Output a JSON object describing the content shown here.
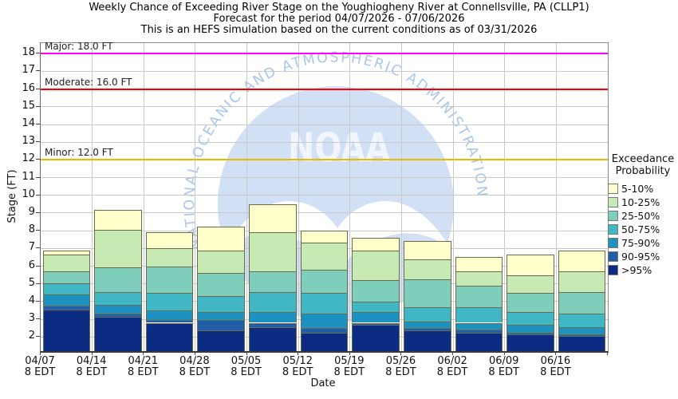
{
  "title": {
    "line1": "Weekly Chance of Exceeding River Stage on the Youghiogheny River at Connellsville, PA (CLLP1)",
    "line2": "Forecast for the period 04/07/2026 - 07/06/2026",
    "line3": "This is an HEFS simulation based on the current conditions as of 03/31/2026"
  },
  "axes": {
    "y_label": "Stage (FT)",
    "x_label": "Date",
    "y_ticks": [
      2,
      3,
      4,
      5,
      6,
      7,
      8,
      9,
      10,
      11,
      12,
      13,
      14,
      15,
      16,
      17,
      18
    ],
    "x_time_label": "8 EDT"
  },
  "thresholds": [
    {
      "name": "Major",
      "label": "Major: 18.0 FT",
      "value": 18.0,
      "color": "#ff00ff"
    },
    {
      "name": "Moderate",
      "label": "Moderate: 16.0 FT",
      "value": 16.0,
      "color": "#ff0000"
    },
    {
      "name": "Minor",
      "label": "Minor: 12.0 FT",
      "value": 12.0,
      "color": "#eab902"
    }
  ],
  "legend": {
    "title_line1": "Exceedance",
    "title_line2": "Probability",
    "entries": [
      {
        "label": "5-10%",
        "color": "#ffffcc"
      },
      {
        "label": "10-25%",
        "color": "#c7e9b4"
      },
      {
        "label": "25-50%",
        "color": "#7fcdbb"
      },
      {
        "label": "50-75%",
        "color": "#41b6c4"
      },
      {
        "label": "75-90%",
        "color": "#1d91c0"
      },
      {
        "label": "90-95%",
        "color": "#225ea8"
      },
      {
        "label": ">95%",
        "color": "#0c2c84"
      }
    ]
  },
  "watermark": {
    "arc_text": "NATIONAL OCEANIC AND ATMOSPHERIC ADMINISTRATION",
    "center_text": "NOAA",
    "circle_color": "#d2e0f6",
    "arc_text_color": "#a9c6ec"
  },
  "colors": {
    "gridline": "#c9c9c9",
    "bar_outline": "#6b6b4e",
    "axis": "#3a3a3a"
  },
  "chart_data": {
    "type": "bar",
    "stacked": true,
    "title": "Weekly Chance of Exceeding River Stage on the Youghiogheny River at Connellsville, PA (CLLP1)",
    "xlabel": "Date",
    "ylabel": "Stage (FT)",
    "ylim": [
      1.2,
      18.6
    ],
    "grid": true,
    "legend_position": "right",
    "categories": [
      "04/07",
      "04/14",
      "04/21",
      "04/28",
      "05/05",
      "05/12",
      "05/19",
      "05/26",
      "06/02",
      "06/09",
      "06/16"
    ],
    "time_label": "8 EDT",
    "baseline_ft": 1.2,
    "note": "Each series value is the cumulative stage (FT) at the top of that exceedance-probability band; bands stack bottom-to-top from >95% to 5-10%.",
    "series": [
      {
        "name": ">95%",
        "color": "#0c2c84",
        "top_ft": [
          3.55,
          3.15,
          2.8,
          2.35,
          2.55,
          2.25,
          2.7,
          2.35,
          2.25,
          2.15,
          2.05
        ]
      },
      {
        "name": "90-95%",
        "color": "#225ea8",
        "top_ft": [
          3.75,
          3.3,
          2.95,
          2.95,
          2.8,
          2.5,
          2.8,
          2.5,
          2.4,
          2.25,
          2.15
        ]
      },
      {
        "name": "75-90%",
        "color": "#1d91c0",
        "top_ft": [
          4.4,
          3.8,
          3.5,
          3.4,
          3.4,
          3.3,
          3.4,
          2.85,
          2.8,
          2.7,
          2.55
        ]
      },
      {
        "name": "50-75%",
        "color": "#41b6c4",
        "top_ft": [
          5.05,
          4.55,
          4.5,
          4.3,
          4.55,
          4.5,
          4.0,
          3.7,
          3.7,
          3.4,
          3.3
        ]
      },
      {
        "name": "25-50%",
        "color": "#7fcdbb",
        "top_ft": [
          5.7,
          5.95,
          6.0,
          5.6,
          5.7,
          5.8,
          5.2,
          5.25,
          4.9,
          4.5,
          4.55
        ]
      },
      {
        "name": "10-25%",
        "color": "#c7e9b4",
        "top_ft": [
          6.65,
          8.05,
          7.0,
          6.9,
          7.9,
          7.35,
          6.9,
          6.4,
          5.7,
          5.5,
          5.7
        ]
      },
      {
        "name": "5-10%",
        "color": "#ffffcc",
        "top_ft": [
          6.9,
          9.2,
          7.9,
          8.25,
          9.5,
          8.0,
          7.6,
          7.4,
          6.5,
          6.65,
          6.9
        ]
      }
    ]
  }
}
